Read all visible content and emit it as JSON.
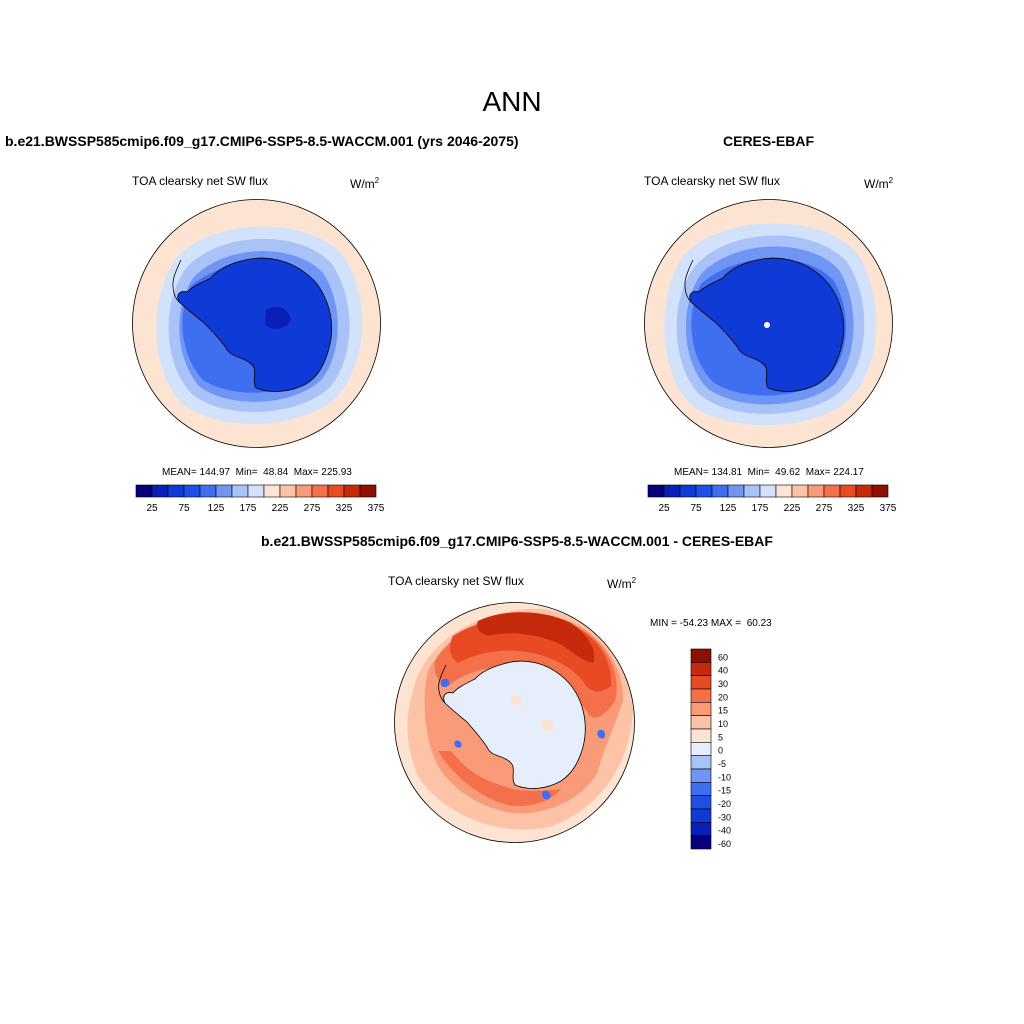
{
  "figure": {
    "title": "ANN"
  },
  "panels": [
    {
      "id": "model",
      "title": "b.e21.BWSSP585cmip6.f09_g17.CMIP6-SSP5-8.5-WACCM.001 (yrs 2046-2075)",
      "variable": "TOA clearsky net SW flux",
      "units_base": "W/m",
      "units_exp": "2",
      "stats": "MEAN= 144.97  Min=  48.84  Max= 225.93"
    },
    {
      "id": "obs",
      "title": "CERES-EBAF",
      "variable": "TOA clearsky net SW flux",
      "units_base": "W/m",
      "units_exp": "2",
      "stats": "MEAN= 134.81  Min=  49.62  Max= 224.17"
    },
    {
      "id": "diff",
      "title": "b.e21.BWSSP585cmip6.f09_g17.CMIP6-SSP5-8.5-WACCM.001 - CERES-EBAF",
      "variable": "TOA clearsky net SW flux",
      "units_base": "W/m",
      "units_exp": "2",
      "stats": "MIN = -54.23 MAX =  60.23"
    }
  ],
  "colorbar_main": {
    "tick_labels": [
      "25",
      "75",
      "125",
      "175",
      "225",
      "275",
      "325",
      "375"
    ],
    "colors": [
      "#08007a",
      "#0a1fb8",
      "#0f3ad6",
      "#1e50e6",
      "#3f6ef0",
      "#6f95f5",
      "#a9c3f8",
      "#d3e2fb",
      "#fde4d2",
      "#fcc3a7",
      "#f99a78",
      "#f4704b",
      "#e84a23",
      "#c42a0b",
      "#8c0f02"
    ]
  },
  "colorbar_diff": {
    "levels": [
      "60",
      "40",
      "30",
      "20",
      "15",
      "10",
      "5",
      "0",
      "-5",
      "-10",
      "-15",
      "-20",
      "-30",
      "-40",
      "-60"
    ],
    "colors": [
      "#8c0f02",
      "#c42a0b",
      "#e84a23",
      "#f4704b",
      "#f99a78",
      "#fcc3a7",
      "#fde4d2",
      "#e6eefc",
      "#a9c3f8",
      "#6f95f5",
      "#3f6ef0",
      "#1e50e6",
      "#0f3ad6",
      "#0a1fb8",
      "#08007a"
    ]
  },
  "map_colors": {
    "ocean_outer": "#fde4d2",
    "ring_light": "#d3e2fb",
    "ring_mid": "#a9c3f8",
    "ring_blue": "#6f95f5",
    "ring_deep": "#3f6ef0",
    "land": "#0f3ad6",
    "land_dark": "#0a1fb8",
    "diff_dark_red": "#c42a0b",
    "diff_red": "#e84a23",
    "diff_orange": "#f4704b",
    "diff_salmon": "#f99a78",
    "diff_peach": "#fcc3a7",
    "diff_pale": "#fde4d2",
    "diff_pale_blue": "#e6eefc",
    "diff_blue": "#3f6ef0"
  }
}
